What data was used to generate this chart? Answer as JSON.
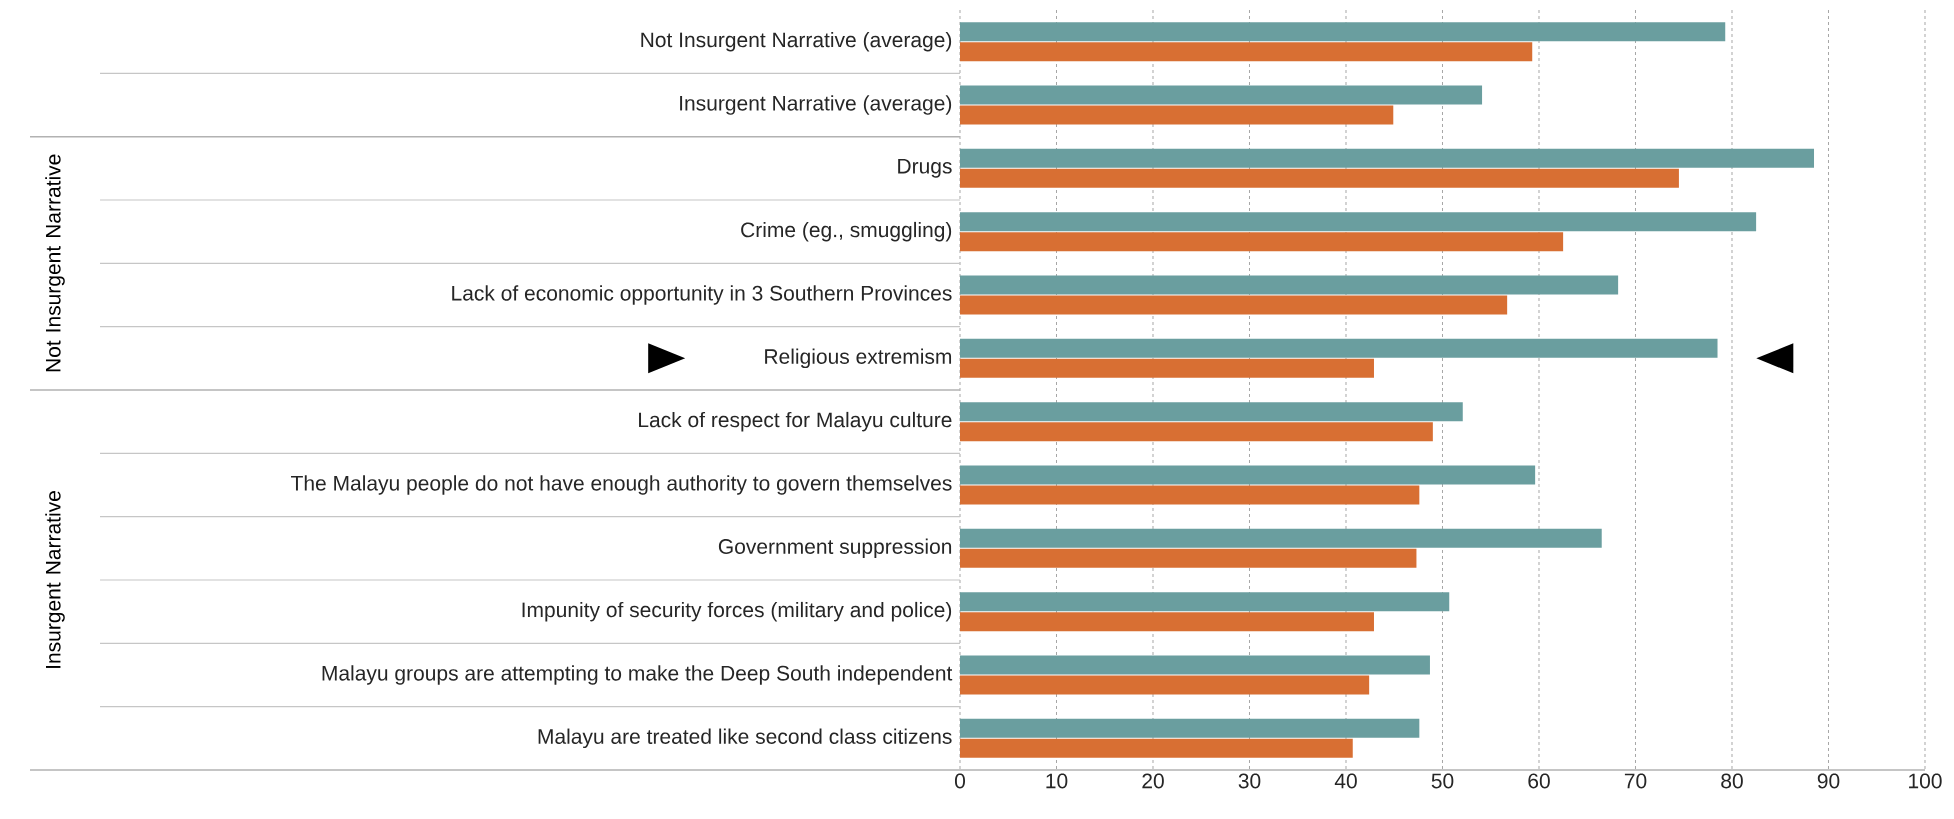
{
  "chart_data": {
    "type": "bar",
    "orientation": "horizontal",
    "categories": [
      "Not Insurgent Narrative (average)",
      "Insurgent Narrative (average)",
      "Drugs",
      "Crime (eg., smuggling)",
      "Lack of economic opportunity in 3 Southern Provinces",
      "Religious extremism",
      "Lack of respect for Malayu culture",
      "The Malayu people do not have enough authority to govern themselves",
      "Government suppression",
      "Impunity of security forces (military and police)",
      "Malayu groups are attempting to make the Deep South independent",
      "Malayu are treated like second class citizens"
    ],
    "series": [
      {
        "color": "#6a9e9f",
        "values": [
          79.3,
          54.1,
          88.5,
          82.5,
          68.2,
          78.5,
          52.1,
          59.6,
          66.5,
          50.7,
          48.7,
          47.6
        ]
      },
      {
        "color": "#d86f33",
        "values": [
          59.3,
          44.9,
          74.5,
          62.5,
          56.7,
          42.9,
          49.0,
          47.6,
          47.3,
          42.9,
          42.4,
          40.7
        ]
      }
    ],
    "xlim": [
      0,
      100
    ],
    "xticks": [
      0,
      10,
      20,
      30,
      40,
      50,
      60,
      70,
      80,
      90,
      100
    ],
    "grid": "x",
    "annotations": [
      "Not Insurgent Narrative",
      "Insurgent Narrative"
    ]
  }
}
